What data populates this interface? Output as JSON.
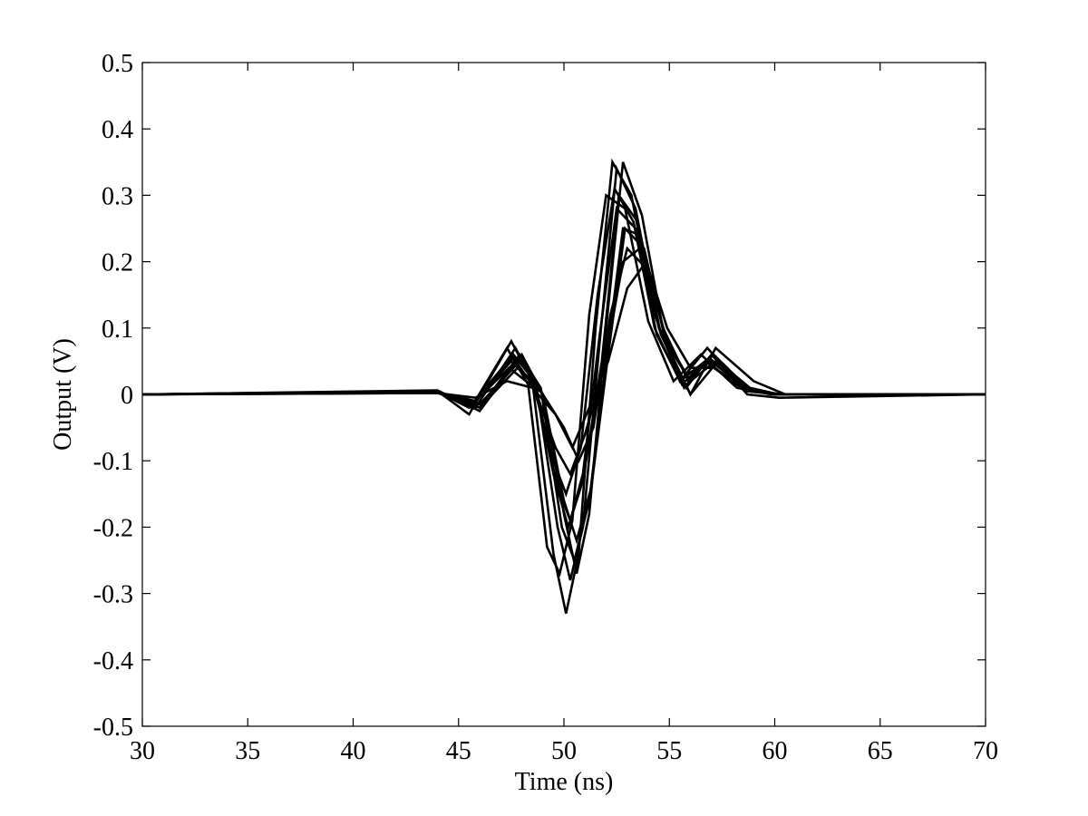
{
  "chart_data": {
    "type": "line",
    "title": "",
    "xlabel": "Time (ns)",
    "ylabel": "Output (V)",
    "xlim": [
      30,
      70
    ],
    "ylim": [
      -0.5,
      0.5
    ],
    "xticks": [
      30,
      35,
      40,
      45,
      50,
      55,
      60,
      65,
      70
    ],
    "yticks": [
      0.5,
      0.4,
      0.3,
      0.2,
      0.1,
      0,
      -0.1,
      -0.2,
      -0.3,
      -0.4,
      -0.5
    ],
    "xtick_labels": [
      "30",
      "35",
      "40",
      "45",
      "50",
      "55",
      "60",
      "65",
      "70"
    ],
    "ytick_labels": [
      "0.5",
      "0.4",
      "0.3",
      "0.2",
      "0.1",
      "0",
      "-0.1",
      "-0.2",
      "-0.3",
      "-0.4",
      "-0.5"
    ],
    "grid": false,
    "line_color": "#000000",
    "series": [
      {
        "x": [
          30,
          44,
          45.5,
          47.5,
          48.5,
          49.5,
          50.1,
          50.7,
          51.5,
          52.3,
          53.2,
          54.3,
          55.5,
          56.8,
          58.5,
          60,
          70
        ],
        "y": [
          0,
          0.005,
          -0.03,
          0.08,
          0.02,
          -0.24,
          -0.33,
          -0.24,
          0.1,
          0.35,
          0.3,
          0.12,
          0.02,
          0.07,
          0.01,
          0,
          0
        ]
      },
      {
        "x": [
          30,
          44,
          45.8,
          47.7,
          48.7,
          49.7,
          50.3,
          50.9,
          51.7,
          52.5,
          53.4,
          54.5,
          55.7,
          57,
          58.7,
          60.2,
          70
        ],
        "y": [
          0,
          0.004,
          -0.02,
          0.07,
          0.01,
          -0.2,
          -0.28,
          -0.2,
          0.08,
          0.34,
          0.28,
          0.1,
          0.01,
          0.06,
          0.0,
          -0.005,
          0
        ]
      },
      {
        "x": [
          30,
          44,
          46,
          48,
          49,
          50,
          50.6,
          51.2,
          52,
          52.8,
          53.7,
          54.8,
          56,
          57.2,
          59,
          60.5,
          70
        ],
        "y": [
          0,
          0.006,
          -0.025,
          0.06,
          0.0,
          -0.18,
          -0.27,
          -0.18,
          0.1,
          0.35,
          0.27,
          0.08,
          0.0,
          0.07,
          0.02,
          0,
          0
        ]
      },
      {
        "x": [
          30,
          44,
          45.6,
          47.3,
          48.3,
          49.2,
          49.8,
          50.4,
          51.2,
          52,
          52.9,
          54,
          55.2,
          56.5,
          58.2,
          59.8,
          70
        ],
        "y": [
          0,
          0.003,
          -0.02,
          0.07,
          0.015,
          -0.23,
          -0.27,
          -0.19,
          0.12,
          0.3,
          0.28,
          0.11,
          0.02,
          0.06,
          0.01,
          0,
          0
        ]
      },
      {
        "x": [
          30,
          44,
          46,
          47.9,
          49,
          50,
          50.6,
          51.3,
          52.1,
          52.9,
          53.8,
          54.9,
          56,
          57.3,
          59,
          60.5,
          70
        ],
        "y": [
          0,
          0.002,
          -0.015,
          0.05,
          0.0,
          -0.16,
          -0.22,
          -0.14,
          0.06,
          0.25,
          0.22,
          0.07,
          0.0,
          0.05,
          0.005,
          0,
          0
        ]
      },
      {
        "x": [
          30,
          44,
          45.5,
          47.6,
          48.6,
          49.5,
          50.2,
          50.9,
          51.8,
          52.6,
          53.5,
          54.6,
          55.8,
          57,
          58.6,
          60.2,
          70
        ],
        "y": [
          0,
          0.004,
          -0.02,
          0.06,
          0.02,
          -0.12,
          -0.2,
          -0.13,
          0.05,
          0.3,
          0.26,
          0.09,
          0.01,
          0.06,
          0.01,
          0,
          0
        ]
      },
      {
        "x": [
          30,
          44,
          45.8,
          47.4,
          48.6,
          49.6,
          50.3,
          51,
          51.9,
          52.8,
          53.6,
          54.6,
          55.8,
          57,
          58.5,
          60,
          70
        ],
        "y": [
          0,
          0.003,
          -0.01,
          0.04,
          0.01,
          -0.08,
          -0.12,
          -0.06,
          0.04,
          0.2,
          0.22,
          0.09,
          0.03,
          0.05,
          0.01,
          0,
          0
        ]
      },
      {
        "x": [
          30,
          44,
          45.8,
          47.3,
          48.5,
          49.6,
          50.4,
          51.2,
          52.1,
          53,
          53.9,
          54.9,
          56,
          57.1,
          58.6,
          60.1,
          70
        ],
        "y": [
          0,
          0.002,
          -0.005,
          0.02,
          0.01,
          -0.03,
          -0.08,
          -0.02,
          0.05,
          0.16,
          0.2,
          0.1,
          0.04,
          0.04,
          0.01,
          0,
          0
        ]
      },
      {
        "x": [
          30,
          44,
          46,
          47.8,
          49,
          50,
          50.7,
          51.4,
          52.2,
          53,
          53.9,
          54.9,
          56,
          57.2,
          58.8,
          60.2,
          70
        ],
        "y": [
          0,
          0.003,
          -0.02,
          0.04,
          0.0,
          -0.05,
          -0.1,
          -0.05,
          0.12,
          0.22,
          0.19,
          0.08,
          0.02,
          0.05,
          0.01,
          0,
          0
        ]
      },
      {
        "x": [
          30,
          44,
          45.5,
          47.5,
          48.5,
          49.5,
          50.1,
          50.8,
          51.6,
          52.4,
          53.3,
          54.3,
          55.5,
          56.7,
          58.4,
          60,
          70
        ],
        "y": [
          0,
          0.005,
          -0.02,
          0.05,
          0.02,
          -0.1,
          -0.15,
          -0.08,
          0.15,
          0.31,
          0.26,
          0.1,
          0.02,
          0.05,
          0.01,
          0,
          0
        ]
      },
      {
        "x": [
          30,
          44,
          46,
          47.9,
          48.9,
          49.9,
          50.5,
          51.2,
          52,
          52.8,
          53.6,
          54.7,
          55.9,
          57.1,
          58.7,
          60.2,
          70
        ],
        "y": [
          0,
          0.004,
          -0.02,
          0.06,
          0.01,
          -0.2,
          -0.25,
          -0.16,
          0.05,
          0.25,
          0.24,
          0.1,
          0.02,
          0.06,
          0.01,
          0,
          0
        ]
      },
      {
        "x": [
          30,
          44,
          45.7,
          47.6,
          48.7,
          49.7,
          50.3,
          50.9,
          51.7,
          52.5,
          53.4,
          54.4,
          55.6,
          56.9,
          58.6,
          60.1,
          70
        ],
        "y": [
          0,
          0.003,
          -0.015,
          0.055,
          0.005,
          -0.14,
          -0.19,
          -0.12,
          0.09,
          0.28,
          0.25,
          0.09,
          0.015,
          0.055,
          0.005,
          0,
          0
        ]
      }
    ]
  }
}
